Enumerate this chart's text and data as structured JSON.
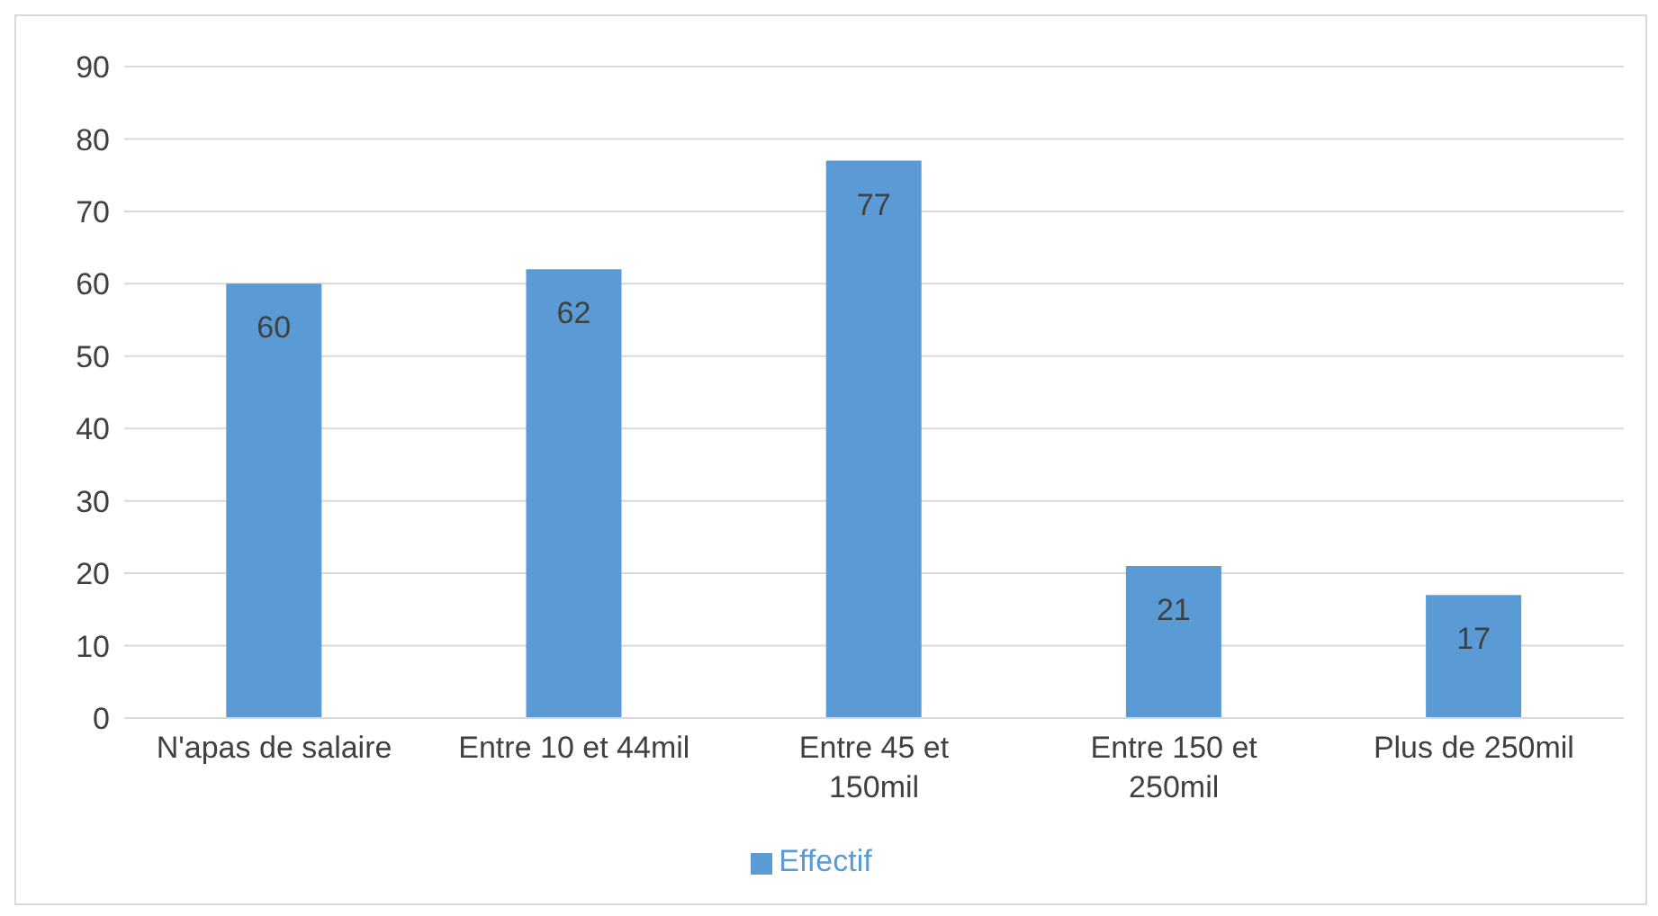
{
  "chart_data": {
    "type": "bar",
    "categories": [
      "N'apas de salaire",
      "Entre 10 et 44mil",
      "Entre 45 et 150mil",
      "Entre 150 et 250mil",
      "Plus de 250mil"
    ],
    "series": [
      {
        "name": "Effectif",
        "color": "#5b9bd5",
        "values": [
          60,
          62,
          77,
          21,
          17
        ]
      }
    ],
    "ylim": [
      0,
      90
    ],
    "yticks": [
      0,
      10,
      20,
      30,
      40,
      50,
      60,
      70,
      80,
      90
    ],
    "grid": "y",
    "legend": "bottom",
    "data_labels": true
  }
}
